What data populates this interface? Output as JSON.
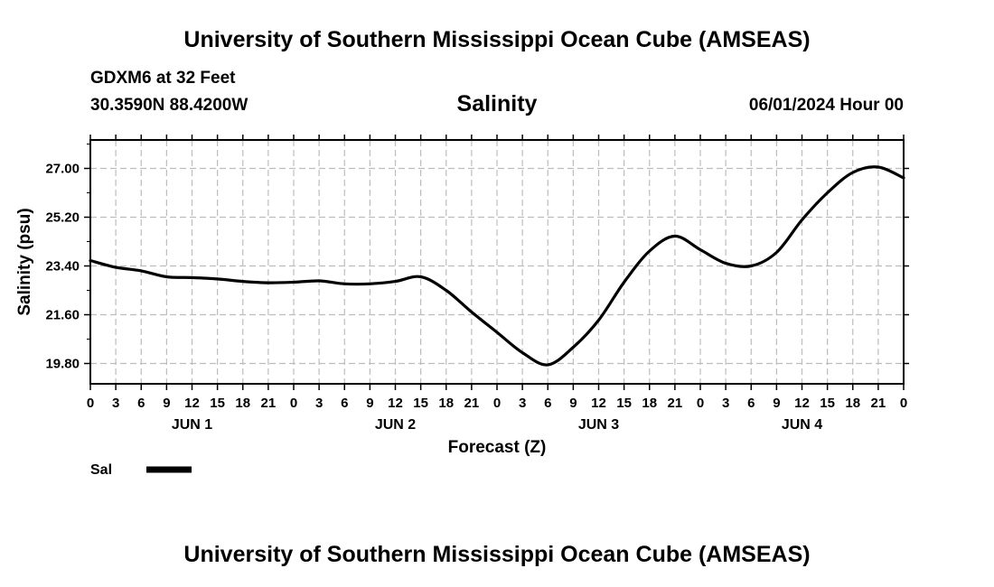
{
  "header": {
    "title_top": "University of Southern Mississippi Ocean Cube (AMSEAS)",
    "station": "GDXM6 at 32 Feet",
    "coords": "30.3590N  88.4200W",
    "variable": "Salinity",
    "datetime": "06/01/2024 Hour 00",
    "title_bottom": "University of Southern Mississippi Ocean Cube (AMSEAS)"
  },
  "legend": {
    "label": "Sal",
    "color": "#000000"
  },
  "chart_data": {
    "type": "line",
    "title": "Salinity",
    "xlabel": "Forecast (Z)",
    "ylabel": "Salinity (psu)",
    "xlim": [
      0,
      96
    ],
    "ylim": [
      19.05,
      28.05
    ],
    "grid": true,
    "yticks": [
      "27.00",
      "25.20",
      "23.40",
      "21.60",
      "19.80"
    ],
    "ytick_values": [
      27.0,
      25.2,
      23.4,
      21.6,
      19.8
    ],
    "xtick_labels": [
      "0",
      "3",
      "6",
      "9",
      "12",
      "15",
      "18",
      "21",
      "0",
      "3",
      "6",
      "9",
      "12",
      "15",
      "18",
      "21",
      "0",
      "3",
      "6",
      "9",
      "12",
      "15",
      "18",
      "21",
      "0",
      "3",
      "6",
      "9",
      "12",
      "15",
      "18",
      "21",
      "0"
    ],
    "day_labels": [
      {
        "label": "JUN 1",
        "hour": 12
      },
      {
        "label": "JUN 2",
        "hour": 36
      },
      {
        "label": "JUN 3",
        "hour": 60
      },
      {
        "label": "JUN 4",
        "hour": 84
      }
    ],
    "series": [
      {
        "name": "Sal",
        "x": [
          0,
          3,
          6,
          9,
          12,
          15,
          18,
          21,
          24,
          27,
          30,
          33,
          36,
          39,
          42,
          45,
          48,
          51,
          54,
          57,
          60,
          63,
          66,
          69,
          72,
          75,
          78,
          81,
          84,
          87,
          90,
          93,
          96
        ],
        "values": [
          23.6,
          23.35,
          23.22,
          23.0,
          22.97,
          22.92,
          22.83,
          22.78,
          22.8,
          22.85,
          22.74,
          22.74,
          22.83,
          23.0,
          22.5,
          21.7,
          20.95,
          20.2,
          19.75,
          20.4,
          21.4,
          22.8,
          23.95,
          24.5,
          24.0,
          23.5,
          23.4,
          23.9,
          25.1,
          26.1,
          26.85,
          27.05,
          26.65
        ]
      }
    ]
  }
}
